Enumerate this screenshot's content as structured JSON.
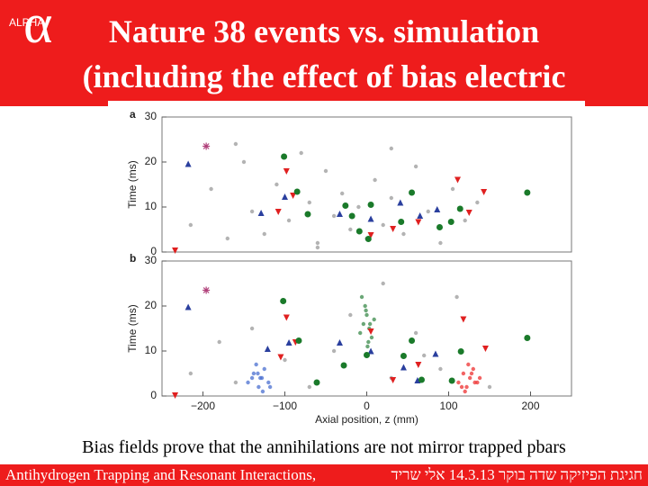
{
  "logo": {
    "word": "ALPHA",
    "glyph": "α"
  },
  "title": [
    "Nature 38 events vs. simulation",
    "(including the effect of bias electric"
  ],
  "caption": "Bias fields prove that the annihilations are not mirror trapped pbars",
  "footer": {
    "left": "Antihydrogen Trapping and Resonant Interactions,",
    "right": "חגיגת הפיזיקה שדה בוקר 14.3.13 אלי שריד"
  },
  "chart_data": [
    {
      "type": "scatter",
      "panel_label": "a",
      "ylabel": "Time (ms)",
      "xlim": [
        -250,
        250
      ],
      "ylim": [
        0,
        30
      ],
      "yticks": [
        0,
        10,
        20,
        30
      ],
      "series": [
        {
          "color": "#9a9a9a",
          "marker": "dot",
          "x": [
            -215,
            -190,
            -170,
            -150,
            -140,
            -125,
            -110,
            -95,
            -80,
            -70,
            -60,
            -50,
            -40,
            -30,
            -20,
            -10,
            0,
            10,
            20,
            30,
            45,
            60,
            75,
            90,
            105,
            120,
            135,
            -160,
            -60,
            30
          ],
          "values": [
            6,
            14,
            3,
            20,
            9,
            4,
            15,
            7,
            22,
            11,
            2,
            18,
            8,
            13,
            5,
            10,
            3,
            16,
            6,
            12,
            4,
            19,
            9,
            2,
            14,
            7,
            11,
            24,
            1,
            23
          ]
        },
        {
          "color": "#b0407a",
          "marker": "star",
          "x": [
            -196
          ],
          "values": [
            23.5
          ]
        },
        {
          "color": "#2a3f9e",
          "marker": "triangle-up",
          "x": [
            -218,
            -129,
            -100,
            -33,
            5,
            41,
            65,
            86
          ],
          "values": [
            19.5,
            8.6,
            12.2,
            8.4,
            7.3,
            10.9,
            8,
            9.4
          ]
        },
        {
          "color": "#e02020",
          "marker": "triangle-down",
          "x": [
            -234,
            -98,
            -90,
            -108,
            5,
            32,
            63,
            111,
            143,
            125
          ],
          "values": [
            0.4,
            18,
            12.6,
            9,
            3.8,
            5.2,
            6.7,
            16.1,
            13.4,
            8.8
          ]
        },
        {
          "color": "#1a7a2a",
          "marker": "circle",
          "x": [
            -101,
            -85,
            -72,
            -26,
            -18,
            -9,
            2,
            5,
            55,
            42,
            103,
            114,
            196,
            89
          ],
          "values": [
            21.2,
            13.4,
            8.4,
            10.3,
            8,
            4.6,
            2.9,
            10.5,
            13.2,
            6.7,
            6.7,
            9.6,
            13.2,
            5.5
          ]
        }
      ]
    },
    {
      "type": "scatter",
      "panel_label": "b",
      "ylabel": "Time (ms)",
      "xlabel": "Axial position, z (mm)",
      "xlim": [
        -250,
        250
      ],
      "xticks": [
        {
          "value": -200,
          "label": "−200"
        },
        {
          "value": -100,
          "label": "−100"
        },
        0,
        100,
        200
      ],
      "ylim": [
        0,
        30
      ],
      "yticks": [
        0,
        10,
        20,
        30
      ],
      "series": [
        {
          "color": "#9a9a9a",
          "marker": "dot",
          "x": [
            -215,
            -180,
            -160,
            -100,
            -70,
            -40,
            -20,
            30,
            60,
            90,
            110,
            150,
            -140,
            20,
            70
          ],
          "values": [
            5,
            12,
            3,
            8,
            2,
            10,
            18,
            4,
            14,
            6,
            22,
            2,
            15,
            25,
            9
          ]
        },
        {
          "color": "#4a6fd0",
          "marker": "dot",
          "x": [
            -145,
            -138,
            -132,
            -128,
            -125,
            -120,
            -135,
            -130,
            -118,
            -140,
            -127,
            -133
          ],
          "values": [
            3,
            5,
            2,
            4,
            6,
            3,
            7,
            4,
            2,
            4,
            1,
            5
          ]
        },
        {
          "color": "#3a8a4a",
          "marker": "dot",
          "x": [
            -8,
            -4,
            0,
            3,
            6,
            -2,
            2,
            9,
            -6,
            1,
            4,
            -1
          ],
          "values": [
            14,
            16,
            18,
            15,
            13,
            20,
            12,
            17,
            22,
            11,
            16,
            19
          ]
        },
        {
          "color": "#ee3030",
          "marker": "dot",
          "x": [
            112,
            118,
            122,
            126,
            130,
            135,
            120,
            128,
            124,
            138,
            116,
            132
          ],
          "values": [
            3,
            5,
            2,
            4,
            6,
            3,
            1,
            5,
            7,
            4,
            2,
            3
          ]
        },
        {
          "color": "#b0407a",
          "marker": "star",
          "x": [
            -196
          ],
          "values": [
            23.5
          ]
        },
        {
          "color": "#2a3f9e",
          "marker": "triangle-up",
          "x": [
            -218,
            -95,
            -121,
            -33,
            5,
            45,
            62,
            84
          ],
          "values": [
            19.7,
            11.8,
            10.4,
            11.8,
            9.9,
            6.3,
            3.4,
            9.3
          ]
        },
        {
          "color": "#e02020",
          "marker": "triangle-down",
          "x": [
            -234,
            -98,
            -87,
            -105,
            5,
            32,
            63,
            118,
            145
          ],
          "values": [
            0.2,
            17.5,
            12,
            8.7,
            14.4,
            3.6,
            7,
            17.1,
            10.6
          ]
        },
        {
          "color": "#1a7a2a",
          "marker": "circle",
          "x": [
            -102,
            -83,
            -61,
            -28,
            0,
            55,
            45,
            104,
            115,
            196,
            67
          ],
          "values": [
            21.1,
            12.3,
            3,
            6.8,
            9.1,
            12.3,
            8.9,
            3.4,
            9.9,
            12.9,
            3.6
          ]
        }
      ]
    }
  ]
}
